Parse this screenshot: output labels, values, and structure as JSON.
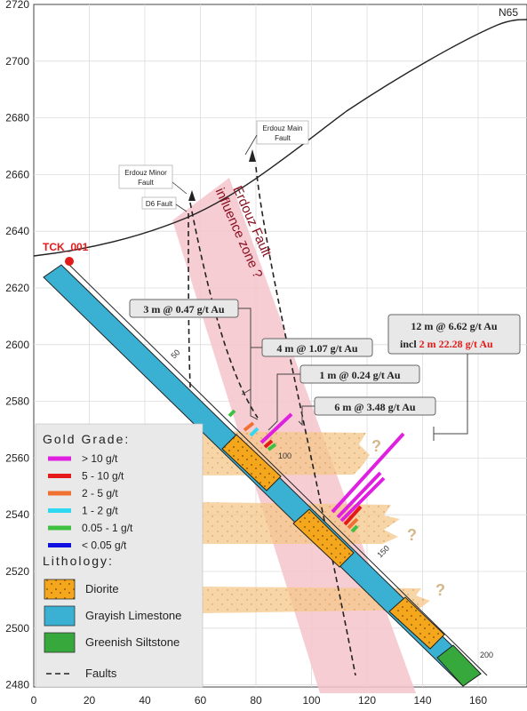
{
  "section": {
    "section_label": "N65",
    "hole_id": "TCK_001",
    "x_ticks": [
      "0",
      "20",
      "40",
      "60",
      "80",
      "100",
      "120",
      "140",
      "160"
    ],
    "y_ticks": [
      "2720",
      "2700",
      "2680",
      "2660",
      "2640",
      "2620",
      "2600",
      "2580",
      "2560",
      "2540",
      "2520",
      "2500",
      "2480"
    ],
    "depth_ticks": [
      "50",
      "100",
      "150",
      "200"
    ],
    "zone_label_line1": "Erdouz Fault",
    "zone_label_line2": "influence zone ?",
    "question_mark": "?"
  },
  "faults": {
    "main": [
      "Erdouz Main",
      "Fault"
    ],
    "minor": [
      "Erdouz Minor",
      "Fault"
    ],
    "d6": "D6 Fault"
  },
  "intercepts": {
    "a": "3 m @ 0.47 g/t Au",
    "b": "4 m @ 1.07 g/t Au",
    "c": "1 m @ 0.24 g/t Au",
    "d": "6 m @ 3.48 g/t Au",
    "e_line1": "12 m @ 6.62 g/t Au",
    "e_line2_prefix": "incl ",
    "e_line2_highlight": "2 m 22.28 g/t Au"
  },
  "legend": {
    "grade_title": "Gold Grade:",
    "grades": [
      {
        "label": "> 10 g/t",
        "color": "#e020e0"
      },
      {
        "label": "5 - 10 g/t",
        "color": "#e41a1a"
      },
      {
        "label": "2 - 5 g/t",
        "color": "#f07030"
      },
      {
        "label": "1 - 2 g/t",
        "color": "#30d8f0"
      },
      {
        "label": "0.05 - 1 g/t",
        "color": "#40c040"
      },
      {
        "label": "< 0.05 g/t",
        "color": "#1010e0"
      }
    ],
    "lith_title": "Lithology:",
    "lithology": [
      {
        "label": "Diorite",
        "color": "#f4a71c"
      },
      {
        "label": "Grayish Limestone",
        "color": "#3ab1d2"
      },
      {
        "label": "Greenish Siltstone",
        "color": "#37a93c"
      }
    ],
    "faults_label": "Faults"
  }
}
